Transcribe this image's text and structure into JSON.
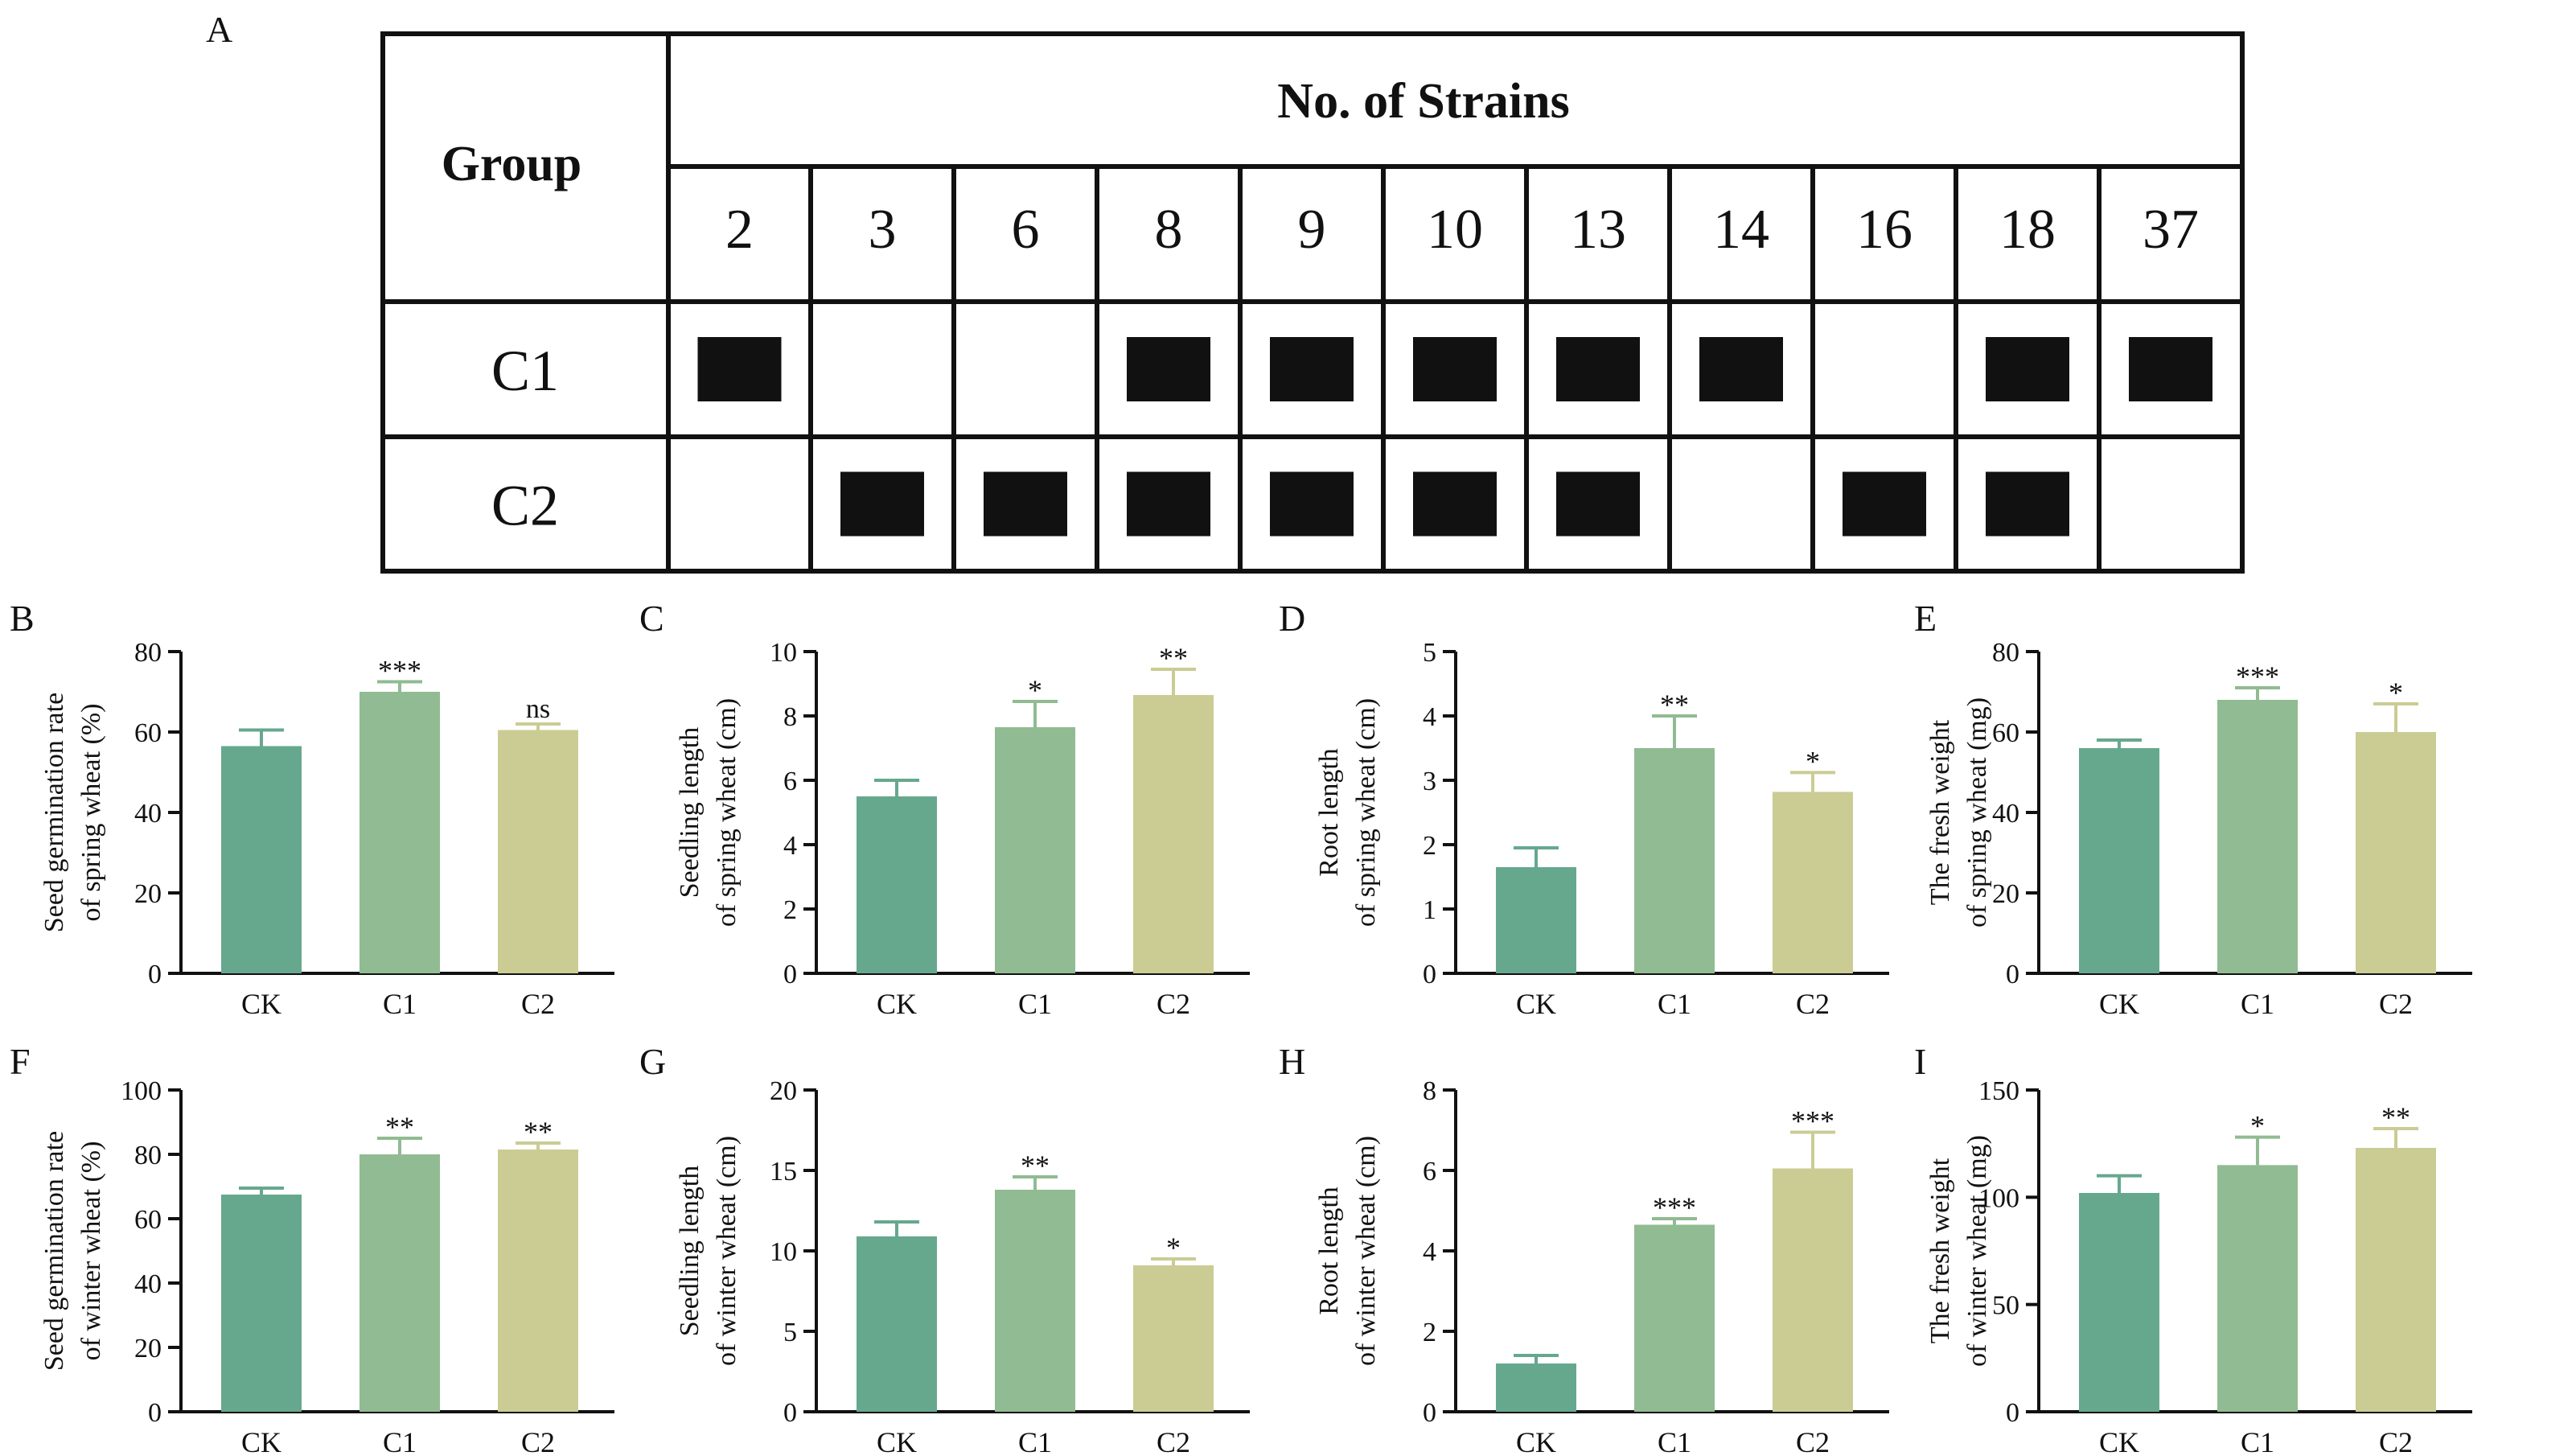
{
  "panel_letters": {
    "A": "A",
    "B": "B",
    "C": "C",
    "D": "D",
    "E": "E",
    "F": "F",
    "G": "G",
    "H": "H",
    "I": "I"
  },
  "colors": {
    "CK": "#66a88e",
    "C1": "#91bb92",
    "C2": "#cbcc94",
    "cell": "#111111",
    "axis": "#111111"
  },
  "table": {
    "group_header": "Group",
    "strains_header": "No. of Strains",
    "strains": [
      "2",
      "3",
      "6",
      "8",
      "9",
      "10",
      "13",
      "14",
      "16",
      "18",
      "37"
    ],
    "rows": [
      {
        "label": "C1",
        "present": [
          1,
          0,
          0,
          1,
          1,
          1,
          1,
          1,
          0,
          1,
          1
        ]
      },
      {
        "label": "C2",
        "present": [
          0,
          1,
          1,
          1,
          1,
          1,
          1,
          0,
          1,
          1,
          0
        ]
      }
    ]
  },
  "chart_data": [
    {
      "panel": "B",
      "type": "bar",
      "categories": [
        "CK",
        "C1",
        "C2"
      ],
      "values": [
        56.5,
        70,
        60.5
      ],
      "errors": [
        4,
        2.5,
        1.5
      ],
      "significance": [
        "",
        "***",
        "ns"
      ],
      "ylabel_lines": [
        "Seed germination rate",
        "of spring wheat (%)"
      ],
      "ylim": [
        0,
        80
      ],
      "yticks": [
        "0",
        "20",
        "40",
        "60",
        "80"
      ]
    },
    {
      "panel": "C",
      "type": "bar",
      "categories": [
        "CK",
        "C1",
        "C2"
      ],
      "values": [
        5.5,
        7.65,
        8.65
      ],
      "errors": [
        0.5,
        0.8,
        0.8
      ],
      "significance": [
        "",
        "*",
        "**"
      ],
      "ylabel_lines": [
        "Seedling  length",
        "of spring wheat (cm)"
      ],
      "ylim": [
        0,
        10
      ],
      "yticks": [
        "0",
        "2",
        "4",
        "6",
        "8",
        "10"
      ]
    },
    {
      "panel": "D",
      "type": "bar",
      "categories": [
        "CK",
        "C1",
        "C2"
      ],
      "values": [
        1.65,
        3.5,
        2.82
      ],
      "errors": [
        0.3,
        0.5,
        0.3
      ],
      "significance": [
        "",
        "**",
        "*"
      ],
      "ylabel_lines": [
        "Root length",
        "of spring wheat (cm)"
      ],
      "ylim": [
        0,
        5
      ],
      "yticks": [
        "0",
        "1",
        "2",
        "3",
        "4",
        "5"
      ]
    },
    {
      "panel": "E",
      "type": "bar",
      "categories": [
        "CK",
        "C1",
        "C2"
      ],
      "values": [
        56,
        68,
        60
      ],
      "errors": [
        2,
        3,
        7
      ],
      "significance": [
        "",
        "***",
        "*"
      ],
      "ylabel_lines": [
        "The fresh weight",
        "of spring wheat (mg)"
      ],
      "ylim": [
        0,
        80
      ],
      "yticks": [
        "0",
        "20",
        "40",
        "60",
        "80"
      ]
    },
    {
      "panel": "F",
      "type": "bar",
      "categories": [
        "CK",
        "C1",
        "C2"
      ],
      "values": [
        67.5,
        80,
        81.5
      ],
      "errors": [
        2,
        5,
        2
      ],
      "significance": [
        "",
        "**",
        "**"
      ],
      "ylabel_lines": [
        "Seed germination rate",
        "of winter wheat (%)"
      ],
      "ylim": [
        0,
        100
      ],
      "yticks": [
        "0",
        "20",
        "40",
        "60",
        "80",
        "100"
      ]
    },
    {
      "panel": "G",
      "type": "bar",
      "categories": [
        "CK",
        "C1",
        "C2"
      ],
      "values": [
        10.9,
        13.8,
        9.1
      ],
      "errors": [
        0.9,
        0.8,
        0.4
      ],
      "significance": [
        "",
        "**",
        "*"
      ],
      "ylabel_lines": [
        "Seedling length",
        "of winter wheat (cm)"
      ],
      "ylim": [
        0,
        20
      ],
      "yticks": [
        "0",
        "5",
        "10",
        "15",
        "20"
      ]
    },
    {
      "panel": "H",
      "type": "bar",
      "categories": [
        "CK",
        "C1",
        "C2"
      ],
      "values": [
        1.2,
        4.65,
        6.05
      ],
      "errors": [
        0.2,
        0.15,
        0.9
      ],
      "significance": [
        "",
        "***",
        "***"
      ],
      "ylabel_lines": [
        "Root length",
        "of winter wheat (cm)"
      ],
      "ylim": [
        0,
        8
      ],
      "yticks": [
        "0",
        "2",
        "4",
        "6",
        "8"
      ]
    },
    {
      "panel": "I",
      "type": "bar",
      "categories": [
        "CK",
        "C1",
        "C2"
      ],
      "values": [
        102,
        115,
        123
      ],
      "errors": [
        8,
        13,
        9
      ],
      "significance": [
        "",
        "*",
        "**"
      ],
      "ylabel_lines": [
        "The fresh weight",
        "of winter wheat (mg)"
      ],
      "ylim": [
        0,
        150
      ],
      "yticks": [
        "0",
        "50",
        "100",
        "150"
      ]
    }
  ]
}
